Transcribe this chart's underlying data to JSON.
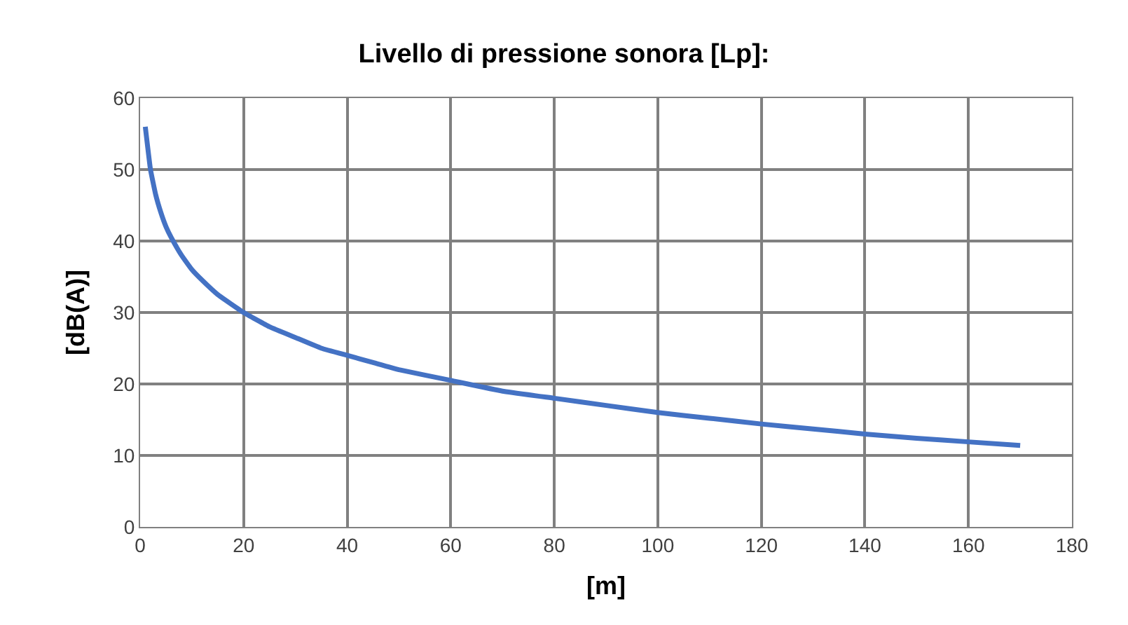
{
  "chart_data": {
    "type": "line",
    "title": "Livello di pressione sonora [Lp]:",
    "xlabel": "[m]",
    "ylabel": "[dB(A)]",
    "x": [
      1,
      2,
      3,
      4,
      5,
      6,
      8,
      10,
      12,
      15,
      20,
      25,
      30,
      35,
      40,
      45,
      50,
      60,
      70,
      80,
      90,
      100,
      110,
      120,
      130,
      140,
      150,
      160,
      170
    ],
    "series": [
      {
        "color": "#4472c4",
        "values": [
          56,
          50,
          46.5,
          44,
          42,
          40.5,
          38,
          36,
          34.5,
          32.5,
          30,
          28,
          26.5,
          25,
          24,
          23,
          22,
          20.5,
          19,
          18,
          17,
          16,
          15.2,
          14.4,
          13.7,
          13,
          12.4,
          11.9,
          11.4
        ]
      }
    ],
    "xlim": [
      0,
      180
    ],
    "xticks": [
      0,
      20,
      40,
      60,
      80,
      100,
      120,
      140,
      160,
      180
    ],
    "ylim": [
      0,
      60
    ],
    "yticks": [
      0,
      10,
      20,
      30,
      40,
      50,
      60
    ],
    "grid": true,
    "legend": false,
    "marker": "none",
    "line_style": "solid"
  }
}
